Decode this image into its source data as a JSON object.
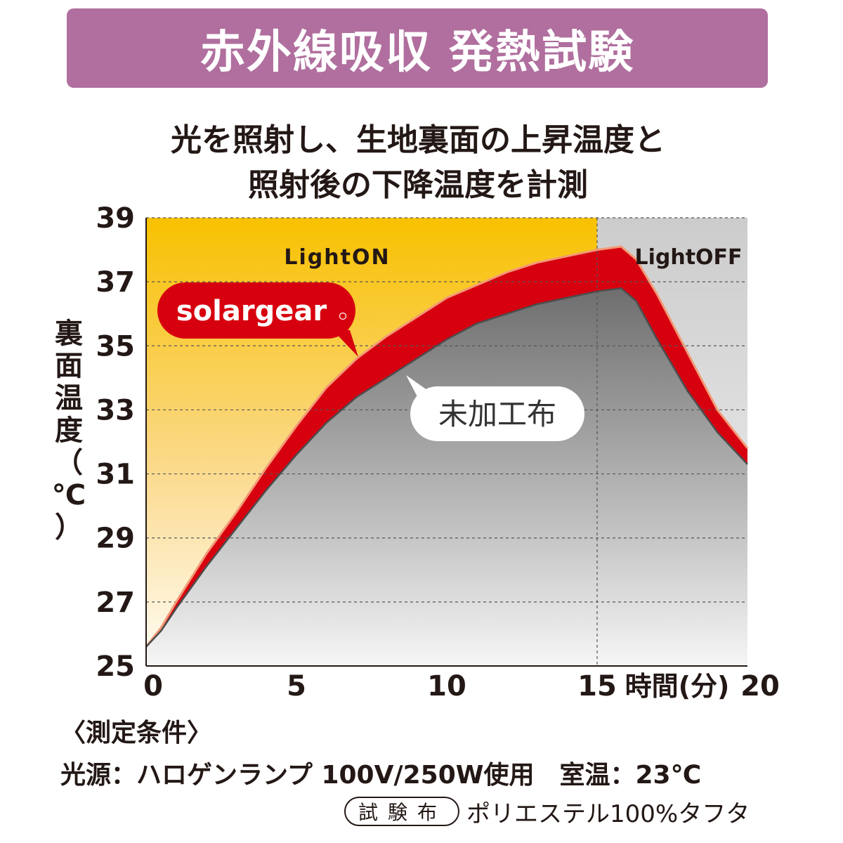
{
  "banner": {
    "title": "赤外線吸収 発熱試験"
  },
  "subtitle": {
    "line1": "光を照射し、生地裏面の上昇温度と",
    "line2": "照射後の下降温度を計測"
  },
  "conditions": {
    "heading": "〈測定条件〉",
    "light_source": "光源：ハロゲンランプ 100V/250W使用　室温：23℃",
    "fabric_badge": "試験布",
    "fabric_value": "ポリエステル100%タフタ"
  },
  "colors": {
    "banner": "#b06f9e",
    "light_on": "#f8c100",
    "solargear": "#d7000f",
    "untreated": "#707070",
    "light_off": "#cfcfcf"
  },
  "chart_data": {
    "type": "area",
    "xlabel": "時間(分)",
    "ylabel": "裏面温度（℃）",
    "xlim": [
      0,
      20
    ],
    "ylim": [
      25,
      39
    ],
    "x_ticks": [
      "0",
      "5",
      "10",
      "15",
      "20"
    ],
    "y_ticks": [
      "25",
      "27",
      "29",
      "31",
      "33",
      "35",
      "37",
      "39"
    ],
    "grid": true,
    "regions": [
      {
        "label": "LightON",
        "x_range": [
          0,
          15
        ]
      },
      {
        "label": "LightOFF",
        "x_range": [
          15,
          20
        ]
      }
    ],
    "series": [
      {
        "name": "solargear",
        "x": [
          0,
          0.5,
          1,
          2,
          3,
          4,
          5,
          6,
          7,
          8,
          9,
          10,
          11,
          12,
          13,
          14,
          15,
          15.8,
          16.3,
          17,
          18,
          19,
          20
        ],
        "y": [
          25.6,
          26.2,
          27.0,
          28.5,
          29.8,
          31.2,
          32.5,
          33.7,
          34.6,
          35.3,
          35.9,
          36.5,
          36.9,
          37.3,
          37.6,
          37.8,
          38.0,
          38.1,
          37.7,
          36.6,
          34.8,
          33.0,
          31.8
        ]
      },
      {
        "name": "未加工布",
        "x": [
          0,
          0.5,
          1,
          2,
          3,
          4,
          5,
          6,
          7,
          8,
          9,
          10,
          11,
          12,
          13,
          14,
          15,
          15.8,
          16.3,
          17,
          18,
          19,
          20
        ],
        "y": [
          25.6,
          26.1,
          26.8,
          28.1,
          29.3,
          30.5,
          31.6,
          32.6,
          33.4,
          34.0,
          34.6,
          35.2,
          35.7,
          36.0,
          36.3,
          36.5,
          36.7,
          36.8,
          36.4,
          35.2,
          33.6,
          32.3,
          31.3
        ]
      }
    ]
  }
}
